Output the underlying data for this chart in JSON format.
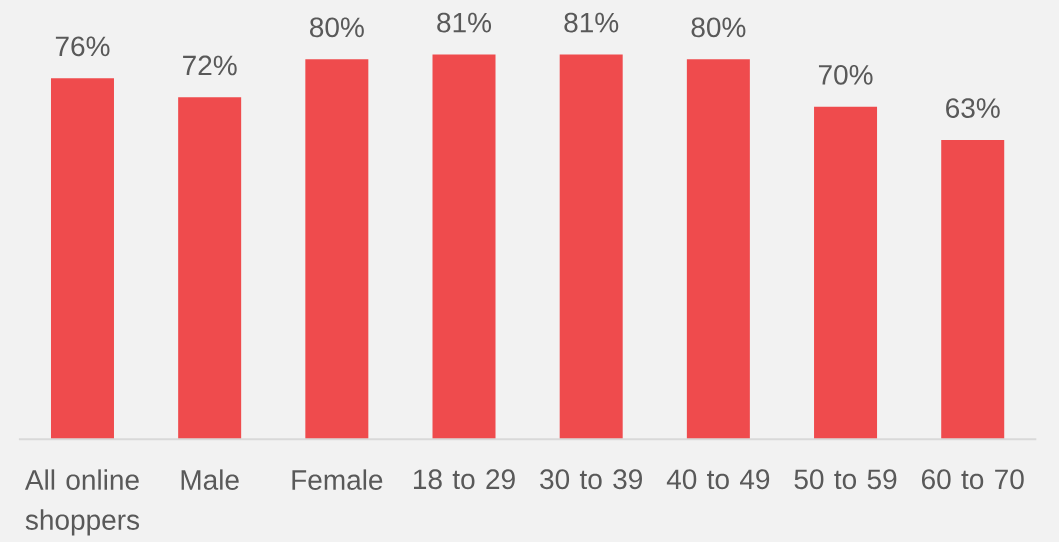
{
  "chart_data": {
    "type": "bar",
    "categories": [
      "All online shoppers",
      "Male",
      "Female",
      "18 to 29",
      "30 to 39",
      "40 to 49",
      "50 to 59",
      "60 to 70"
    ],
    "values": [
      76,
      72,
      80,
      81,
      81,
      80,
      70,
      63
    ],
    "value_labels": [
      "76%",
      "72%",
      "80%",
      "81%",
      "81%",
      "80%",
      "70%",
      "63%"
    ],
    "color": "#ef4b4d",
    "tick_labels": "x"
  }
}
